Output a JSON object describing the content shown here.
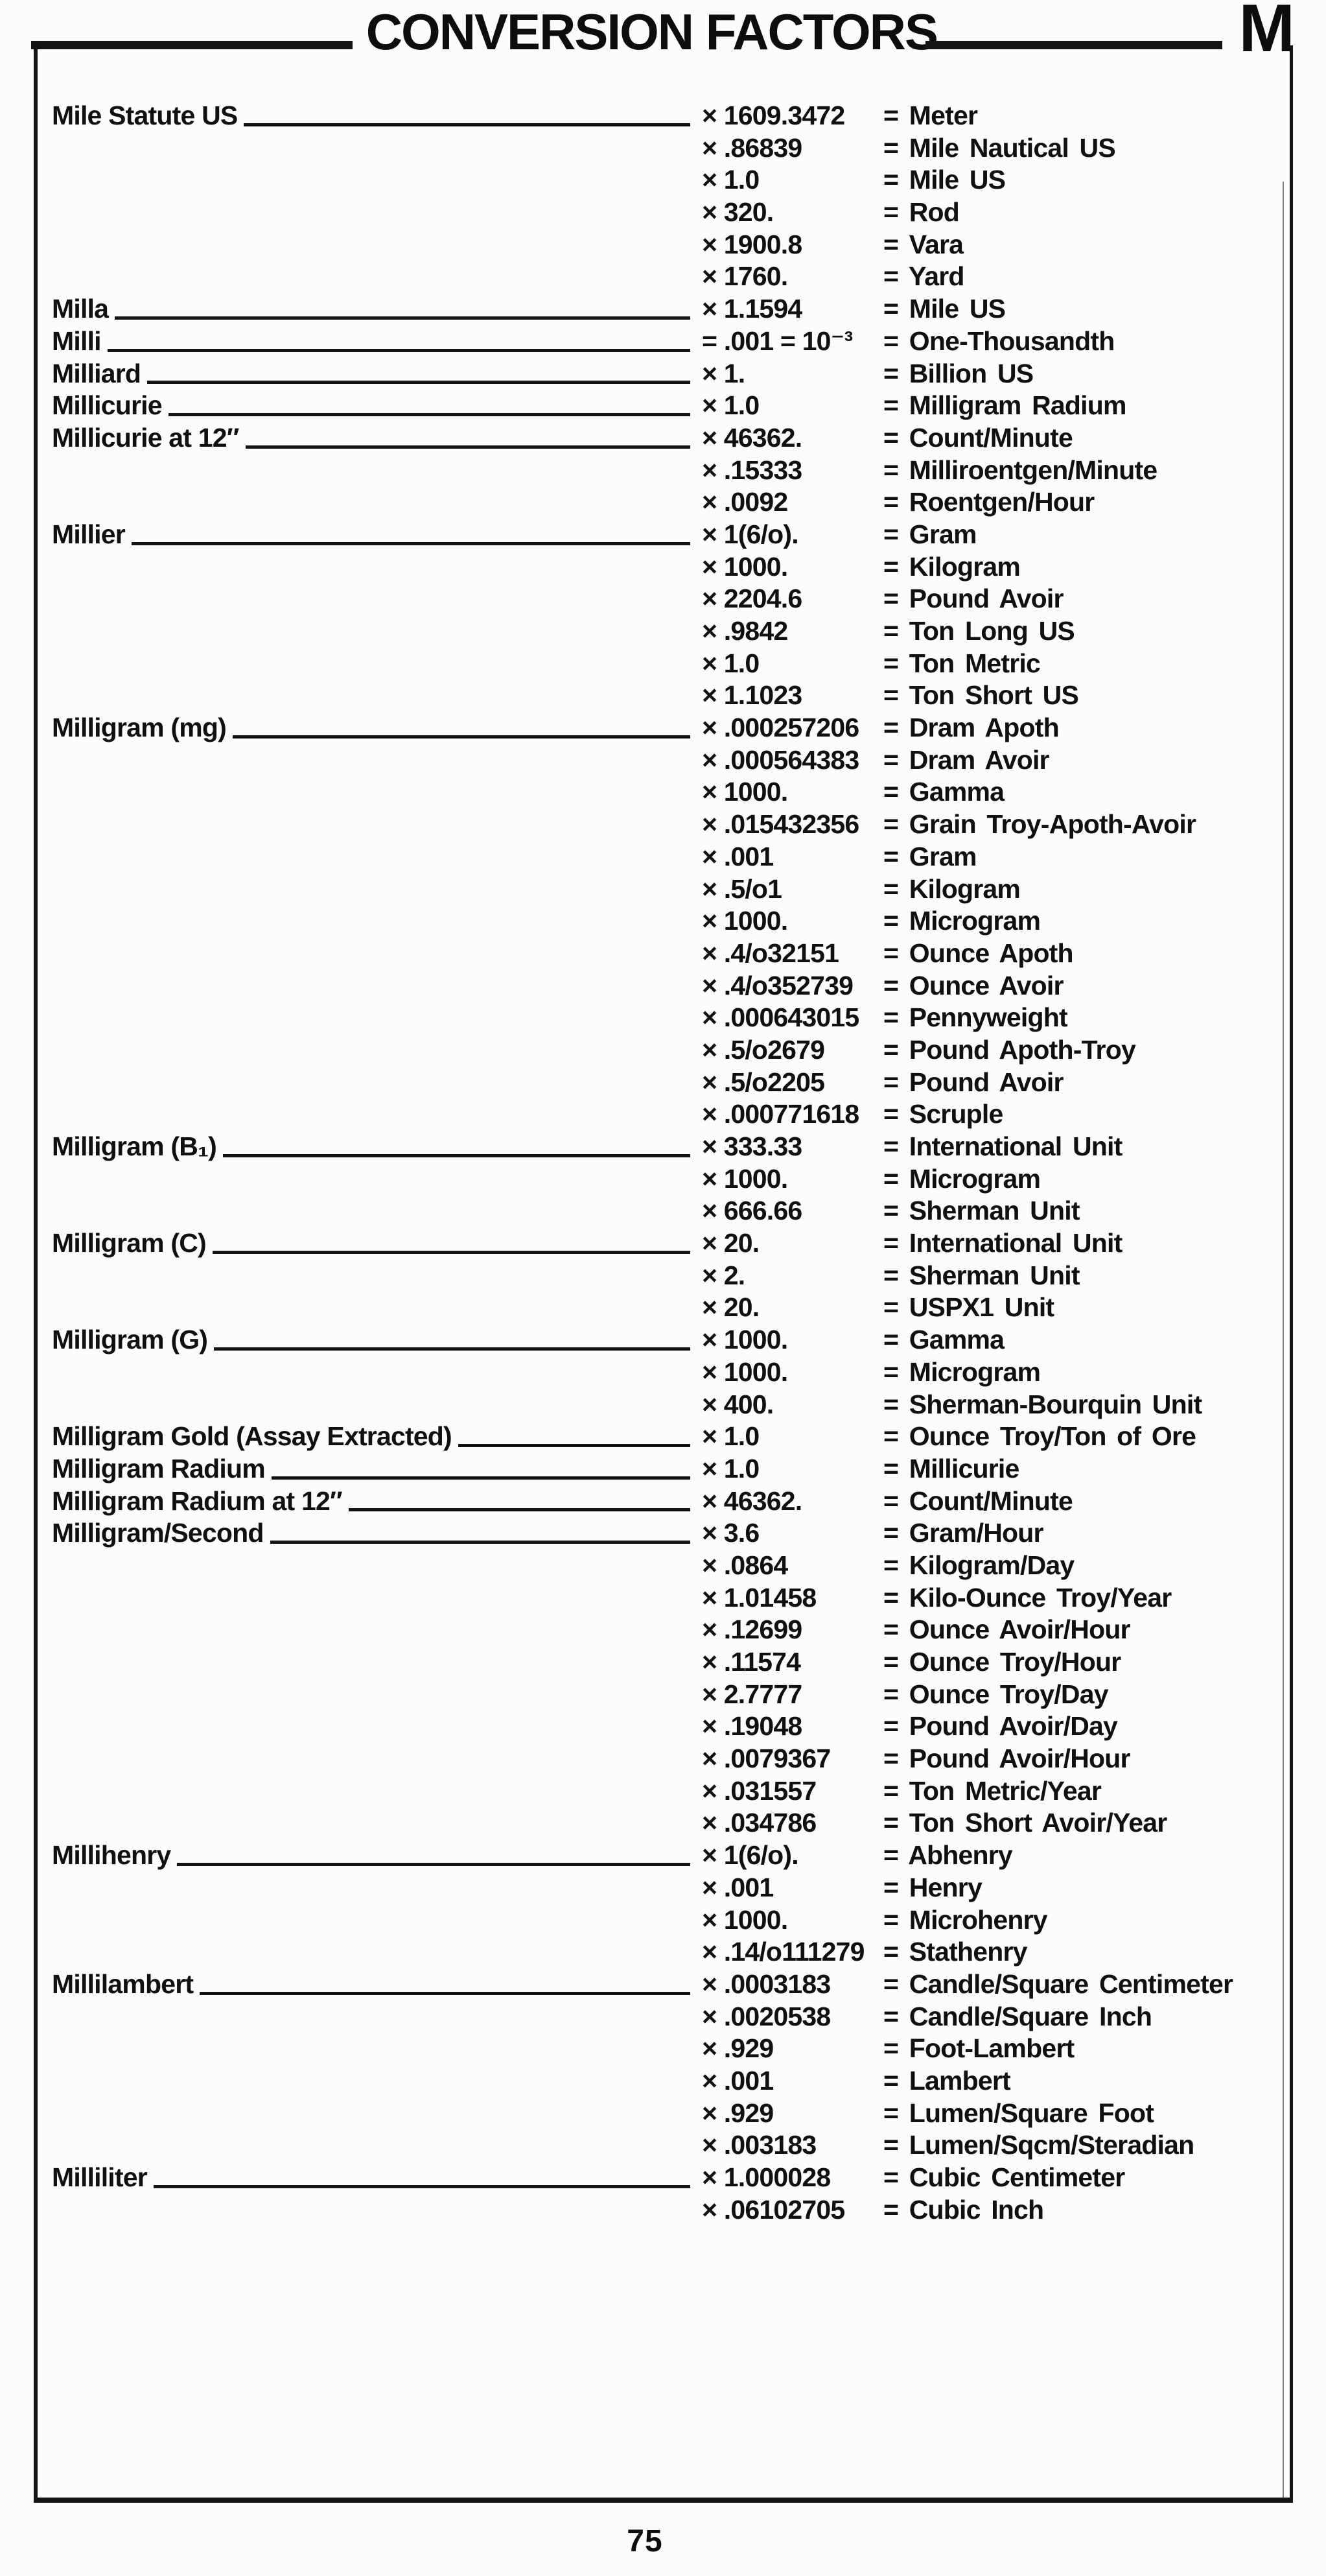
{
  "header": {
    "title": "CONVERSION FACTORS",
    "section_letter": "M"
  },
  "footer": {
    "page_number": "75"
  },
  "table": {
    "rows": [
      {
        "unit": "Mile Statute US",
        "factor": "× 1609.3472",
        "result": "= Meter"
      },
      {
        "unit": "",
        "factor": "× .86839",
        "result": "= Mile Nautical US"
      },
      {
        "unit": "",
        "factor": "× 1.0",
        "result": "= Mile US"
      },
      {
        "unit": "",
        "factor": "× 320.",
        "result": "= Rod"
      },
      {
        "unit": "",
        "factor": "× 1900.8",
        "result": "= Vara"
      },
      {
        "unit": "",
        "factor": "× 1760.",
        "result": "= Yard"
      },
      {
        "unit": "Milla",
        "factor": "× 1.1594",
        "result": "= Mile US"
      },
      {
        "unit": "Milli",
        "factor": "= .001 = 10⁻³",
        "result": "= One-Thousandth"
      },
      {
        "unit": "Milliard",
        "factor": "× 1.",
        "result": "= Billion US"
      },
      {
        "unit": "Millicurie",
        "factor": "× 1.0",
        "result": "= Milligram Radium"
      },
      {
        "unit": "Millicurie at 12″",
        "factor": "× 46362.",
        "result": "= Count/Minute"
      },
      {
        "unit": "",
        "factor": "× .15333",
        "result": "= Milliroentgen/Minute"
      },
      {
        "unit": "",
        "factor": "× .0092",
        "result": "= Roentgen/Hour"
      },
      {
        "unit": "Millier",
        "factor": "× 1(6/o).",
        "result": "= Gram"
      },
      {
        "unit": "",
        "factor": "× 1000.",
        "result": "= Kilogram"
      },
      {
        "unit": "",
        "factor": "× 2204.6",
        "result": "= Pound Avoir"
      },
      {
        "unit": "",
        "factor": "× .9842",
        "result": "= Ton Long US"
      },
      {
        "unit": "",
        "factor": "× 1.0",
        "result": "= Ton Metric"
      },
      {
        "unit": "",
        "factor": "× 1.1023",
        "result": "= Ton Short US"
      },
      {
        "unit": "Milligram (mg)",
        "factor": "× .000257206",
        "result": "= Dram Apoth"
      },
      {
        "unit": "",
        "factor": "× .000564383",
        "result": "= Dram Avoir"
      },
      {
        "unit": "",
        "factor": "× 1000.",
        "result": "= Gamma"
      },
      {
        "unit": "",
        "factor": "× .015432356",
        "result": "= Grain Troy-Apoth-Avoir"
      },
      {
        "unit": "",
        "factor": "× .001",
        "result": "= Gram"
      },
      {
        "unit": "",
        "factor": "× .5/o1",
        "result": "= Kilogram"
      },
      {
        "unit": "",
        "factor": "× 1000.",
        "result": "= Microgram"
      },
      {
        "unit": "",
        "factor": "× .4/o32151",
        "result": "= Ounce Apoth"
      },
      {
        "unit": "",
        "factor": "× .4/o352739",
        "result": "= Ounce Avoir"
      },
      {
        "unit": "",
        "factor": "× .000643015",
        "result": "= Pennyweight"
      },
      {
        "unit": "",
        "factor": "× .5/o2679",
        "result": "= Pound Apoth-Troy"
      },
      {
        "unit": "",
        "factor": "× .5/o2205",
        "result": "= Pound Avoir"
      },
      {
        "unit": "",
        "factor": "× .000771618",
        "result": "= Scruple"
      },
      {
        "unit": "Milligram (B₁)",
        "factor": "× 333.33",
        "result": "= International Unit"
      },
      {
        "unit": "",
        "factor": "× 1000.",
        "result": "= Microgram"
      },
      {
        "unit": "",
        "factor": "× 666.66",
        "result": "= Sherman Unit"
      },
      {
        "unit": "Milligram (C)",
        "factor": "× 20.",
        "result": "= International Unit"
      },
      {
        "unit": "",
        "factor": "× 2.",
        "result": "= Sherman Unit"
      },
      {
        "unit": "",
        "factor": "× 20.",
        "result": "= USPX1 Unit"
      },
      {
        "unit": "Milligram (G)",
        "factor": "× 1000.",
        "result": "= Gamma"
      },
      {
        "unit": "",
        "factor": "× 1000.",
        "result": "= Microgram"
      },
      {
        "unit": "",
        "factor": "× 400.",
        "result": "= Sherman-Bourquin Unit"
      },
      {
        "unit": "Milligram Gold (Assay Extracted)",
        "factor": "× 1.0",
        "result": "= Ounce Troy/Ton of Ore"
      },
      {
        "unit": "Milligram Radium",
        "factor": "× 1.0",
        "result": "= Millicurie"
      },
      {
        "unit": "Milligram Radium at 12″",
        "factor": "× 46362.",
        "result": "= Count/Minute"
      },
      {
        "unit": "Milligram/Second",
        "factor": "× 3.6",
        "result": "= Gram/Hour"
      },
      {
        "unit": "",
        "factor": "× .0864",
        "result": "= Kilogram/Day"
      },
      {
        "unit": "",
        "factor": "× 1.01458",
        "result": "= Kilo-Ounce Troy/Year"
      },
      {
        "unit": "",
        "factor": "× .12699",
        "result": "= Ounce Avoir/Hour"
      },
      {
        "unit": "",
        "factor": "× .11574",
        "result": "= Ounce Troy/Hour"
      },
      {
        "unit": "",
        "factor": "× 2.7777",
        "result": "= Ounce Troy/Day"
      },
      {
        "unit": "",
        "factor": "× .19048",
        "result": "= Pound Avoir/Day"
      },
      {
        "unit": "",
        "factor": "× .0079367",
        "result": "= Pound Avoir/Hour"
      },
      {
        "unit": "",
        "factor": "× .031557",
        "result": "= Ton Metric/Year"
      },
      {
        "unit": "",
        "factor": "× .034786",
        "result": "= Ton Short Avoir/Year"
      },
      {
        "unit": "Millihenry",
        "factor": "× 1(6/o).",
        "result": "= Abhenry"
      },
      {
        "unit": "",
        "factor": "× .001",
        "result": "= Henry"
      },
      {
        "unit": "",
        "factor": "× 1000.",
        "result": "= Microhenry"
      },
      {
        "unit": "",
        "factor": "× .14/o111279",
        "result": "= Stathenry"
      },
      {
        "unit": "Millilambert",
        "factor": "× .0003183",
        "result": "= Candle/Square Centimeter"
      },
      {
        "unit": "",
        "factor": "× .0020538",
        "result": "= Candle/Square Inch"
      },
      {
        "unit": "",
        "factor": "× .929",
        "result": "= Foot-Lambert"
      },
      {
        "unit": "",
        "factor": "× .001",
        "result": "= Lambert"
      },
      {
        "unit": "",
        "factor": "× .929",
        "result": "= Lumen/Square Foot"
      },
      {
        "unit": "",
        "factor": "× .003183",
        "result": "= Lumen/Sqcm/Steradian"
      },
      {
        "unit": "Milliliter",
        "factor": "× 1.000028",
        "result": "= Cubic Centimeter"
      },
      {
        "unit": "",
        "factor": "× .06102705",
        "result": "= Cubic Inch"
      }
    ]
  }
}
